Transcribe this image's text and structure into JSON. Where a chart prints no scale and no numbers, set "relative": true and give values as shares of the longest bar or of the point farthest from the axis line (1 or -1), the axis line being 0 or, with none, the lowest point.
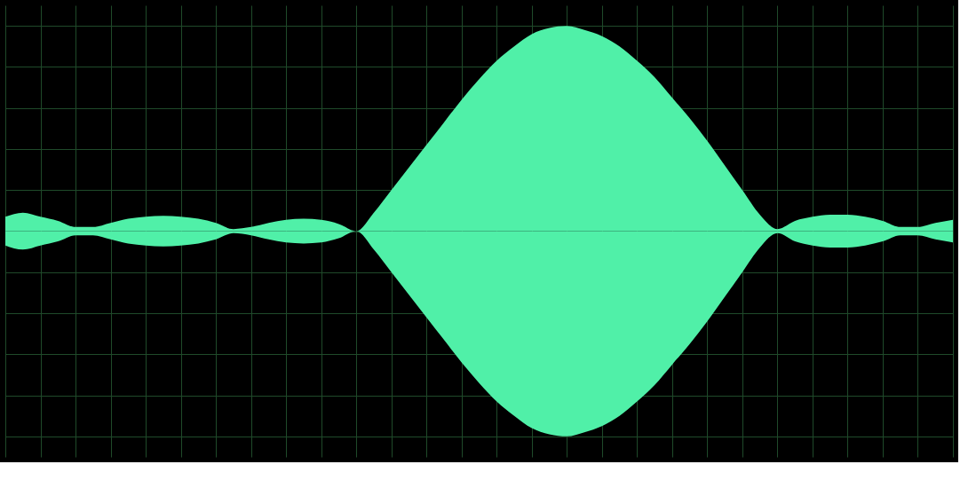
{
  "chart_data": {
    "type": "area",
    "relative": true,
    "grid": true,
    "tick_labels": false,
    "categories": [
      null,
      null,
      null,
      null,
      null,
      null,
      null,
      null,
      null,
      null,
      null,
      null,
      null,
      null,
      null,
      null,
      null,
      null,
      null,
      null,
      null,
      null,
      null,
      null,
      null,
      null,
      null,
      null,
      null,
      null,
      null,
      null,
      null,
      null,
      null,
      null,
      null,
      null,
      null,
      null,
      null,
      null,
      null,
      null,
      null,
      null,
      null,
      null,
      null,
      null,
      null,
      null,
      null,
      null,
      null
    ],
    "series": [
      {
        "color": "#50f0a8",
        "values": [
          0.07,
          0.09,
          0.07,
          0.05,
          0.02,
          0.02,
          0.04,
          0.06,
          0.07,
          0.075,
          0.07,
          0.06,
          0.04,
          0.01,
          0.02,
          0.04,
          0.055,
          0.06,
          0.055,
          0.035,
          0.0,
          0.09,
          0.2,
          0.31,
          0.42,
          0.53,
          0.64,
          0.74,
          0.83,
          0.9,
          0.96,
          0.99,
          1.0,
          0.98,
          0.95,
          0.9,
          0.83,
          0.75,
          0.65,
          0.55,
          0.44,
          0.32,
          0.2,
          0.08,
          0.01,
          0.05,
          0.07,
          0.08,
          0.08,
          0.07,
          0.05,
          0.02,
          0.02,
          0.04,
          0.055
        ]
      },
      {
        "color": "#50f0a8",
        "values": [
          -0.07,
          -0.09,
          -0.07,
          -0.05,
          -0.02,
          -0.02,
          -0.04,
          -0.06,
          -0.07,
          -0.075,
          -0.07,
          -0.06,
          -0.04,
          -0.01,
          -0.02,
          -0.04,
          -0.055,
          -0.06,
          -0.055,
          -0.035,
          0.0,
          -0.09,
          -0.2,
          -0.31,
          -0.42,
          -0.53,
          -0.64,
          -0.74,
          -0.83,
          -0.9,
          -0.96,
          -0.99,
          -1.0,
          -0.98,
          -0.95,
          -0.9,
          -0.83,
          -0.75,
          -0.65,
          -0.55,
          -0.44,
          -0.32,
          -0.2,
          -0.08,
          -0.01,
          -0.05,
          -0.07,
          -0.08,
          -0.08,
          -0.07,
          -0.05,
          -0.02,
          -0.02,
          -0.04,
          -0.055
        ]
      }
    ]
  }
}
